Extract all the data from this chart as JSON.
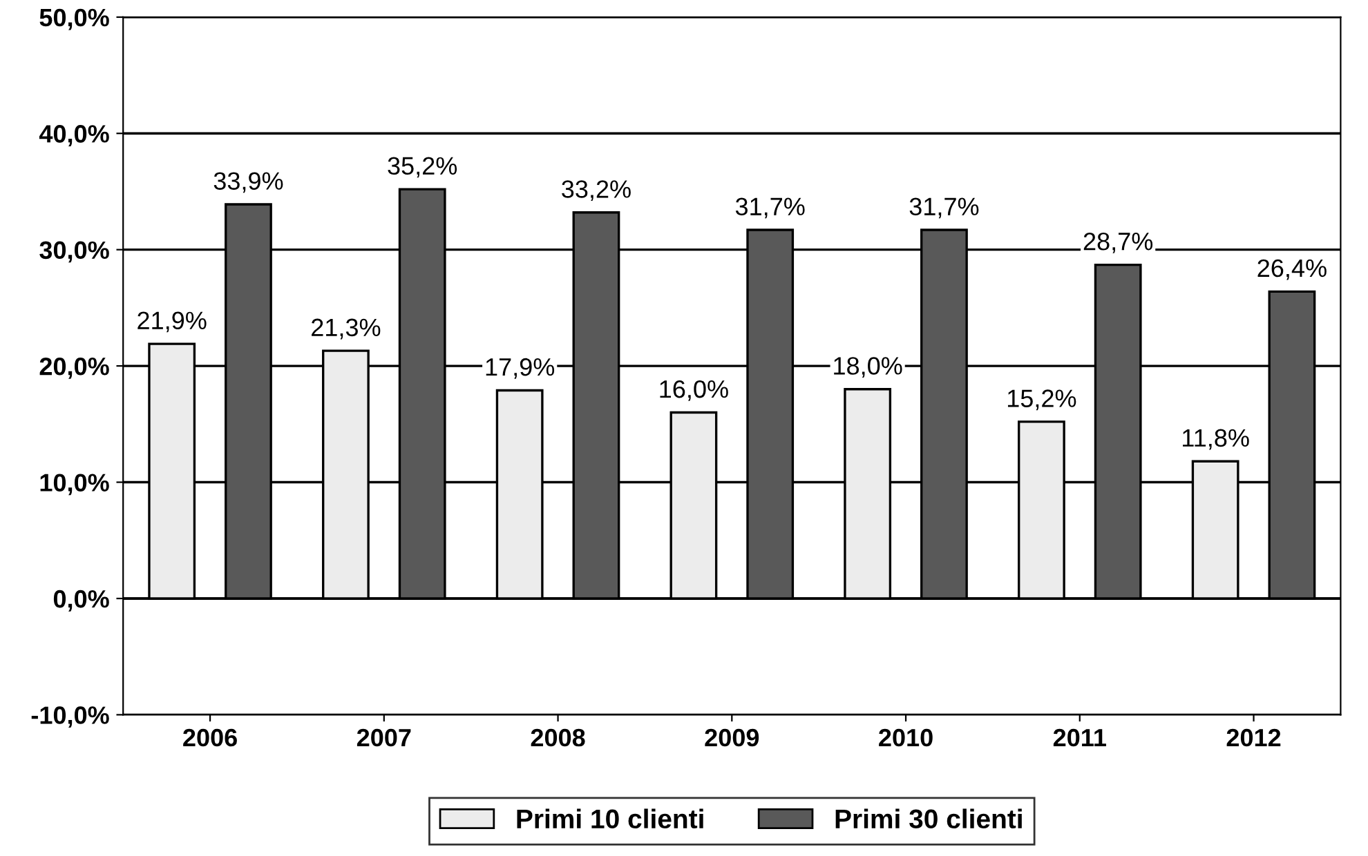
{
  "chart_data": {
    "type": "bar",
    "categories": [
      "2006",
      "2007",
      "2008",
      "2009",
      "2010",
      "2011",
      "2012"
    ],
    "series": [
      {
        "name": "Primi 10 clienti",
        "color": "#ececec",
        "values": [
          21.9,
          21.3,
          17.9,
          16.0,
          18.0,
          15.2,
          11.8
        ],
        "value_labels": [
          "21,9%",
          "21,3%",
          "17,9%",
          "16,0%",
          "18,0%",
          "15,2%",
          "11,8%"
        ]
      },
      {
        "name": "Primi 30 clienti",
        "color": "#595959",
        "values": [
          33.9,
          35.2,
          33.2,
          31.7,
          31.7,
          28.7,
          26.4
        ],
        "value_labels": [
          "33,9%",
          "35,2%",
          "33,2%",
          "31,7%",
          "31,7%",
          "28,7%",
          "26,4%"
        ]
      }
    ],
    "ylim": [
      -10,
      50
    ],
    "yticks": [
      {
        "value": -10,
        "label": "-10,0%"
      },
      {
        "value": 0,
        "label": "0,0%"
      },
      {
        "value": 10,
        "label": "10,0%"
      },
      {
        "value": 20,
        "label": "20,0%"
      },
      {
        "value": 30,
        "label": "30,0%"
      },
      {
        "value": 40,
        "label": "40,0%"
      },
      {
        "value": 50,
        "label": "50,0%"
      }
    ],
    "grid": "y",
    "legend": "bottom"
  }
}
